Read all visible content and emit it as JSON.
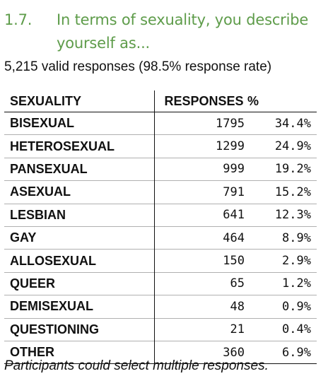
{
  "section": {
    "number": "1.7.",
    "title": "In terms of sexuality, you describe yourself as..."
  },
  "subtitle": "5,215 valid responses (98.5% response rate)",
  "table": {
    "headers": {
      "category": "SEXUALITY",
      "responses": "RESPONSES",
      "percent": "%"
    },
    "rows": [
      {
        "category": "BISEXUAL",
        "responses": "1795",
        "percent": "34.4%"
      },
      {
        "category": "HETEROSEXUAL",
        "responses": "1299",
        "percent": "24.9%"
      },
      {
        "category": "PANSEXUAL",
        "responses": "999",
        "percent": "19.2%"
      },
      {
        "category": "ASEXUAL",
        "responses": "791",
        "percent": "15.2%"
      },
      {
        "category": "LESBIAN",
        "responses": "641",
        "percent": "12.3%"
      },
      {
        "category": "GAY",
        "responses": "464",
        "percent": "8.9%"
      },
      {
        "category": "ALLOSEXUAL",
        "responses": "150",
        "percent": "2.9%"
      },
      {
        "category": "QUEER",
        "responses": "65",
        "percent": "1.2%"
      },
      {
        "category": "DEMISEXUAL",
        "responses": "48",
        "percent": "0.9%"
      },
      {
        "category": "QUESTIONING",
        "responses": "21",
        "percent": "0.4%"
      },
      {
        "category": "OTHER",
        "responses": "360",
        "percent": "6.9%"
      }
    ]
  },
  "note": "Participants could select multiple responses.",
  "colors": {
    "heading": "#5e9c4a",
    "text": "#111111"
  }
}
